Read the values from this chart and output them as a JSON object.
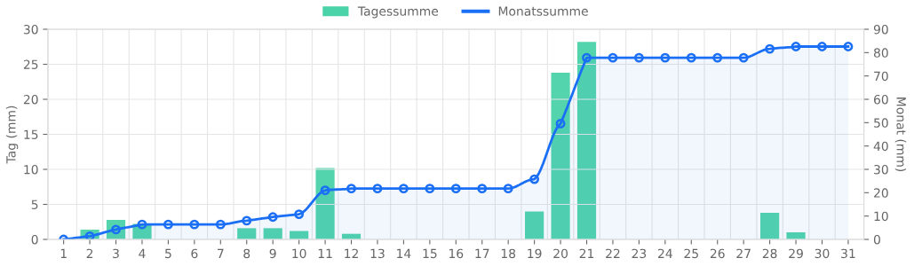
{
  "chart_data": {
    "type": "bar",
    "categories": [
      "1",
      "2",
      "3",
      "4",
      "5",
      "6",
      "7",
      "8",
      "9",
      "10",
      "11",
      "12",
      "13",
      "14",
      "15",
      "16",
      "17",
      "18",
      "19",
      "20",
      "21",
      "22",
      "23",
      "24",
      "25",
      "26",
      "27",
      "28",
      "29",
      "30",
      "31"
    ],
    "series": [
      {
        "name": "Tagessumme",
        "color": "#4ad2a9",
        "values": [
          0,
          1.4,
          2.8,
          2.2,
          0,
          0,
          0,
          1.6,
          1.6,
          1.2,
          10.2,
          0.8,
          0,
          0,
          0,
          0,
          0,
          0,
          4,
          23.8,
          28.2,
          0,
          0,
          0,
          0,
          0,
          0,
          3.8,
          1,
          0,
          0
        ]
      },
      {
        "name": "Monatssumme",
        "type": "area",
        "axis": "y2",
        "color": "#1a6ff5",
        "values": [
          0,
          1.4,
          4.2,
          6.4,
          6.4,
          6.4,
          6.4,
          8,
          9.6,
          10.8,
          21,
          21.8,
          21.8,
          21.8,
          21.8,
          21.8,
          21.8,
          21.8,
          25.8,
          49.6,
          77.8,
          77.8,
          77.8,
          77.8,
          77.8,
          77.8,
          77.8,
          81.6,
          82.6,
          82.6,
          82.6
        ]
      }
    ],
    "ylabel": "Tag (mm)",
    "y2label": "Monat (mm)",
    "ylim": [
      0,
      30
    ],
    "yticks": [
      0,
      5,
      10,
      15,
      20,
      25,
      30
    ],
    "y2lim": [
      0,
      90
    ],
    "y2ticks": [
      0,
      10,
      20,
      30,
      40,
      50,
      60,
      70,
      80,
      90
    ],
    "grid": true,
    "legend": "top",
    "marker": "circle",
    "line_style": "solid"
  }
}
